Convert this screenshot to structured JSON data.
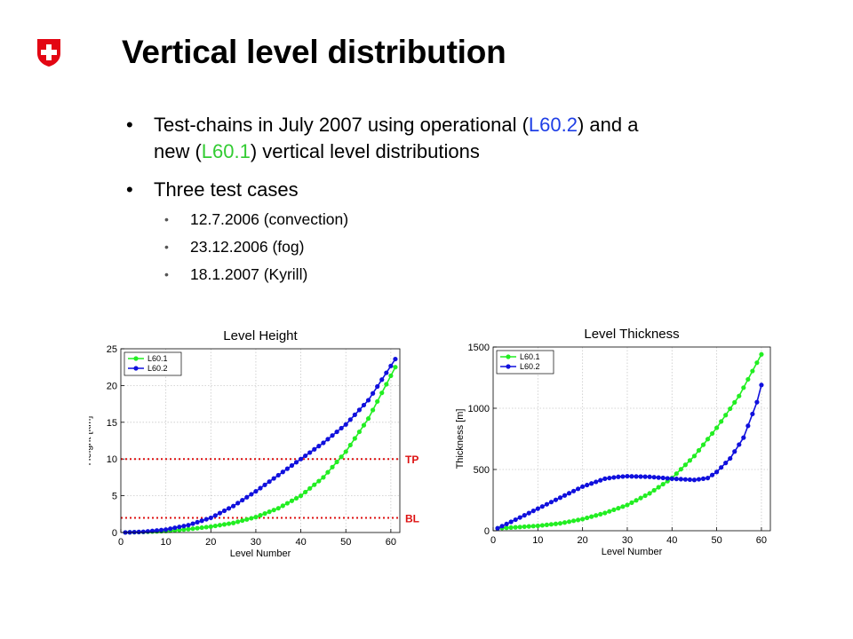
{
  "slide": {
    "title": "Vertical level distribution",
    "bullets": [
      {
        "parts": [
          {
            "text": "Test-chains in July 2007 using operational (",
            "color": "default"
          },
          {
            "text": "L60.2",
            "color": "blue"
          },
          {
            "text": ") and a",
            "color": "default"
          }
        ],
        "line2_parts": [
          {
            "text": "new (",
            "color": "default"
          },
          {
            "text": "L60.1",
            "color": "green"
          },
          {
            "text": ") vertical level distributions",
            "color": "default"
          }
        ]
      },
      {
        "text": "Three test cases"
      }
    ],
    "sub_bullets": [
      "12.7.2006 (convection)",
      "23.12.2006 (fog)",
      "18.1.2007 (Kyrill)"
    ]
  },
  "chart_data": [
    {
      "type": "line",
      "title": "Level Height",
      "xlabel": "Level Number",
      "ylabel": "Height [km]",
      "xlim": [
        0,
        62
      ],
      "ylim": [
        0,
        25
      ],
      "xticks": [
        0,
        10,
        20,
        30,
        40,
        50,
        60
      ],
      "yticks": [
        0,
        5,
        10,
        15,
        20,
        25
      ],
      "grid": true,
      "legend": "top-left",
      "series": [
        {
          "name": "L60.1",
          "color": "#22ee22",
          "x": [
            1,
            5,
            10,
            15,
            20,
            25,
            30,
            35,
            40,
            45,
            50,
            55,
            61
          ],
          "y": [
            0.01,
            0.08,
            0.2,
            0.45,
            0.8,
            1.3,
            2.1,
            3.3,
            5.0,
            7.5,
            11.0,
            15.5,
            22.5
          ]
        },
        {
          "name": "L60.2",
          "color": "#1010dd",
          "x": [
            1,
            5,
            10,
            15,
            20,
            25,
            30,
            35,
            40,
            45,
            50,
            55,
            61
          ],
          "y": [
            0.01,
            0.1,
            0.4,
            1.0,
            2.0,
            3.6,
            5.6,
            7.8,
            10.0,
            12.2,
            14.7,
            18.0,
            23.6
          ]
        }
      ],
      "annotations": [
        {
          "label": "TP",
          "y": 10,
          "color": "#dd1111"
        },
        {
          "label": "BL",
          "y": 2,
          "color": "#dd1111"
        }
      ]
    },
    {
      "type": "line",
      "title": "Level Thickness",
      "xlabel": "Level Number",
      "ylabel": "Thickness [m]",
      "xlim": [
        0,
        62
      ],
      "ylim": [
        0,
        1500
      ],
      "xticks": [
        0,
        10,
        20,
        30,
        40,
        50,
        60
      ],
      "yticks": [
        0,
        500,
        1000,
        1500
      ],
      "grid": true,
      "legend": "top-left",
      "series": [
        {
          "name": "L60.1",
          "color": "#22ee22",
          "x": [
            1,
            5,
            10,
            15,
            20,
            25,
            30,
            35,
            40,
            45,
            50,
            55,
            60
          ],
          "y": [
            20,
            28,
            40,
            60,
            95,
            145,
            210,
            305,
            430,
            610,
            840,
            1100,
            1440
          ]
        },
        {
          "name": "L60.2",
          "color": "#1010dd",
          "x": [
            1,
            5,
            10,
            15,
            20,
            25,
            28,
            30,
            35,
            40,
            45,
            48,
            50,
            53,
            56,
            59,
            60
          ],
          "y": [
            20,
            90,
            180,
            270,
            360,
            425,
            440,
            445,
            440,
            425,
            415,
            430,
            480,
            590,
            760,
            1050,
            1190
          ]
        }
      ]
    }
  ]
}
